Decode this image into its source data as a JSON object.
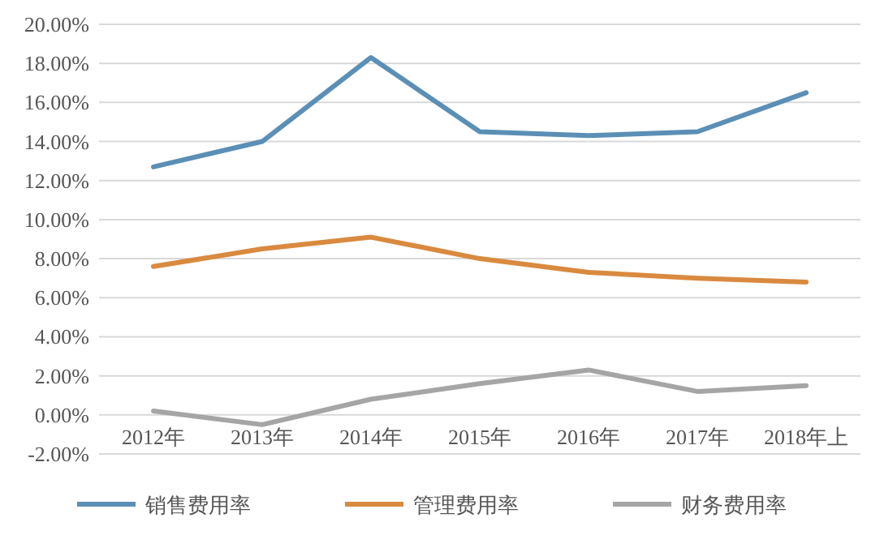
{
  "chart_data": {
    "type": "line",
    "categories": [
      "2012年",
      "2013年",
      "2014年",
      "2015年",
      "2016年",
      "2017年",
      "2018年上"
    ],
    "series": [
      {
        "name": "销售费用率",
        "color": "#5b8fb5",
        "values": [
          12.7,
          14.0,
          18.3,
          14.5,
          14.3,
          14.5,
          16.5
        ]
      },
      {
        "name": "管理费用率",
        "color": "#d98a3f",
        "values": [
          7.6,
          8.5,
          9.1,
          8.0,
          7.3,
          7.0,
          6.8
        ]
      },
      {
        "name": "财务费用率",
        "color": "#a5a5a5",
        "values": [
          0.2,
          -0.5,
          0.8,
          1.6,
          2.3,
          1.2,
          1.5
        ]
      }
    ],
    "ylim": [
      -2,
      20
    ],
    "yticks": [
      {
        "value": -2,
        "label": "-2.00%"
      },
      {
        "value": 0,
        "label": "0.00%"
      },
      {
        "value": 2,
        "label": "2.00%"
      },
      {
        "value": 4,
        "label": "4.00%"
      },
      {
        "value": 6,
        "label": "6.00%"
      },
      {
        "value": 8,
        "label": "8.00%"
      },
      {
        "value": 10,
        "label": "10.00%"
      },
      {
        "value": 12,
        "label": "12.00%"
      },
      {
        "value": 14,
        "label": "14.00%"
      },
      {
        "value": 16,
        "label": "16.00%"
      },
      {
        "value": 18,
        "label": "18.00%"
      },
      {
        "value": 20,
        "label": "20.00%"
      }
    ],
    "grid": "y",
    "legend": "bottom",
    "marker": "none",
    "line_style": "solid"
  }
}
